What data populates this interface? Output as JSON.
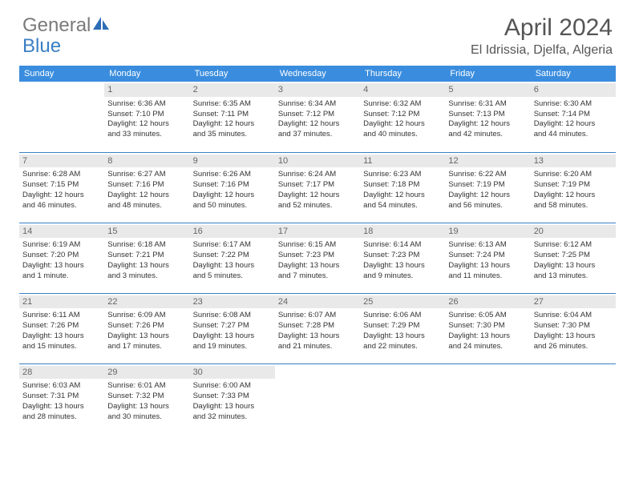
{
  "brand": {
    "part1": "General",
    "part2": "Blue"
  },
  "title": "April 2024",
  "location": "El Idrissia, Djelfa, Algeria",
  "colors": {
    "header_bg": "#3a8dde",
    "header_fg": "#ffffff",
    "row_divider": "#3a7fc4",
    "daynum_bg": "#e9e9e9",
    "daynum_fg": "#666666",
    "body_text": "#333333",
    "title_text": "#555555",
    "logo_gray": "#7a7a7a",
    "logo_blue": "#3a7fc4"
  },
  "weekdays": [
    "Sunday",
    "Monday",
    "Tuesday",
    "Wednesday",
    "Thursday",
    "Friday",
    "Saturday"
  ],
  "weeks": [
    [
      {
        "day": "",
        "sunrise": "",
        "sunset": "",
        "daylight1": "",
        "daylight2": "",
        "empty": true
      },
      {
        "day": "1",
        "sunrise": "Sunrise: 6:36 AM",
        "sunset": "Sunset: 7:10 PM",
        "daylight1": "Daylight: 12 hours",
        "daylight2": "and 33 minutes."
      },
      {
        "day": "2",
        "sunrise": "Sunrise: 6:35 AM",
        "sunset": "Sunset: 7:11 PM",
        "daylight1": "Daylight: 12 hours",
        "daylight2": "and 35 minutes."
      },
      {
        "day": "3",
        "sunrise": "Sunrise: 6:34 AM",
        "sunset": "Sunset: 7:12 PM",
        "daylight1": "Daylight: 12 hours",
        "daylight2": "and 37 minutes."
      },
      {
        "day": "4",
        "sunrise": "Sunrise: 6:32 AM",
        "sunset": "Sunset: 7:12 PM",
        "daylight1": "Daylight: 12 hours",
        "daylight2": "and 40 minutes."
      },
      {
        "day": "5",
        "sunrise": "Sunrise: 6:31 AM",
        "sunset": "Sunset: 7:13 PM",
        "daylight1": "Daylight: 12 hours",
        "daylight2": "and 42 minutes."
      },
      {
        "day": "6",
        "sunrise": "Sunrise: 6:30 AM",
        "sunset": "Sunset: 7:14 PM",
        "daylight1": "Daylight: 12 hours",
        "daylight2": "and 44 minutes."
      }
    ],
    [
      {
        "day": "7",
        "sunrise": "Sunrise: 6:28 AM",
        "sunset": "Sunset: 7:15 PM",
        "daylight1": "Daylight: 12 hours",
        "daylight2": "and 46 minutes."
      },
      {
        "day": "8",
        "sunrise": "Sunrise: 6:27 AM",
        "sunset": "Sunset: 7:16 PM",
        "daylight1": "Daylight: 12 hours",
        "daylight2": "and 48 minutes."
      },
      {
        "day": "9",
        "sunrise": "Sunrise: 6:26 AM",
        "sunset": "Sunset: 7:16 PM",
        "daylight1": "Daylight: 12 hours",
        "daylight2": "and 50 minutes."
      },
      {
        "day": "10",
        "sunrise": "Sunrise: 6:24 AM",
        "sunset": "Sunset: 7:17 PM",
        "daylight1": "Daylight: 12 hours",
        "daylight2": "and 52 minutes."
      },
      {
        "day": "11",
        "sunrise": "Sunrise: 6:23 AM",
        "sunset": "Sunset: 7:18 PM",
        "daylight1": "Daylight: 12 hours",
        "daylight2": "and 54 minutes."
      },
      {
        "day": "12",
        "sunrise": "Sunrise: 6:22 AM",
        "sunset": "Sunset: 7:19 PM",
        "daylight1": "Daylight: 12 hours",
        "daylight2": "and 56 minutes."
      },
      {
        "day": "13",
        "sunrise": "Sunrise: 6:20 AM",
        "sunset": "Sunset: 7:19 PM",
        "daylight1": "Daylight: 12 hours",
        "daylight2": "and 58 minutes."
      }
    ],
    [
      {
        "day": "14",
        "sunrise": "Sunrise: 6:19 AM",
        "sunset": "Sunset: 7:20 PM",
        "daylight1": "Daylight: 13 hours",
        "daylight2": "and 1 minute."
      },
      {
        "day": "15",
        "sunrise": "Sunrise: 6:18 AM",
        "sunset": "Sunset: 7:21 PM",
        "daylight1": "Daylight: 13 hours",
        "daylight2": "and 3 minutes."
      },
      {
        "day": "16",
        "sunrise": "Sunrise: 6:17 AM",
        "sunset": "Sunset: 7:22 PM",
        "daylight1": "Daylight: 13 hours",
        "daylight2": "and 5 minutes."
      },
      {
        "day": "17",
        "sunrise": "Sunrise: 6:15 AM",
        "sunset": "Sunset: 7:23 PM",
        "daylight1": "Daylight: 13 hours",
        "daylight2": "and 7 minutes."
      },
      {
        "day": "18",
        "sunrise": "Sunrise: 6:14 AM",
        "sunset": "Sunset: 7:23 PM",
        "daylight1": "Daylight: 13 hours",
        "daylight2": "and 9 minutes."
      },
      {
        "day": "19",
        "sunrise": "Sunrise: 6:13 AM",
        "sunset": "Sunset: 7:24 PM",
        "daylight1": "Daylight: 13 hours",
        "daylight2": "and 11 minutes."
      },
      {
        "day": "20",
        "sunrise": "Sunrise: 6:12 AM",
        "sunset": "Sunset: 7:25 PM",
        "daylight1": "Daylight: 13 hours",
        "daylight2": "and 13 minutes."
      }
    ],
    [
      {
        "day": "21",
        "sunrise": "Sunrise: 6:11 AM",
        "sunset": "Sunset: 7:26 PM",
        "daylight1": "Daylight: 13 hours",
        "daylight2": "and 15 minutes."
      },
      {
        "day": "22",
        "sunrise": "Sunrise: 6:09 AM",
        "sunset": "Sunset: 7:26 PM",
        "daylight1": "Daylight: 13 hours",
        "daylight2": "and 17 minutes."
      },
      {
        "day": "23",
        "sunrise": "Sunrise: 6:08 AM",
        "sunset": "Sunset: 7:27 PM",
        "daylight1": "Daylight: 13 hours",
        "daylight2": "and 19 minutes."
      },
      {
        "day": "24",
        "sunrise": "Sunrise: 6:07 AM",
        "sunset": "Sunset: 7:28 PM",
        "daylight1": "Daylight: 13 hours",
        "daylight2": "and 21 minutes."
      },
      {
        "day": "25",
        "sunrise": "Sunrise: 6:06 AM",
        "sunset": "Sunset: 7:29 PM",
        "daylight1": "Daylight: 13 hours",
        "daylight2": "and 22 minutes."
      },
      {
        "day": "26",
        "sunrise": "Sunrise: 6:05 AM",
        "sunset": "Sunset: 7:30 PM",
        "daylight1": "Daylight: 13 hours",
        "daylight2": "and 24 minutes."
      },
      {
        "day": "27",
        "sunrise": "Sunrise: 6:04 AM",
        "sunset": "Sunset: 7:30 PM",
        "daylight1": "Daylight: 13 hours",
        "daylight2": "and 26 minutes."
      }
    ],
    [
      {
        "day": "28",
        "sunrise": "Sunrise: 6:03 AM",
        "sunset": "Sunset: 7:31 PM",
        "daylight1": "Daylight: 13 hours",
        "daylight2": "and 28 minutes."
      },
      {
        "day": "29",
        "sunrise": "Sunrise: 6:01 AM",
        "sunset": "Sunset: 7:32 PM",
        "daylight1": "Daylight: 13 hours",
        "daylight2": "and 30 minutes."
      },
      {
        "day": "30",
        "sunrise": "Sunrise: 6:00 AM",
        "sunset": "Sunset: 7:33 PM",
        "daylight1": "Daylight: 13 hours",
        "daylight2": "and 32 minutes."
      },
      {
        "day": "",
        "sunrise": "",
        "sunset": "",
        "daylight1": "",
        "daylight2": "",
        "empty": true
      },
      {
        "day": "",
        "sunrise": "",
        "sunset": "",
        "daylight1": "",
        "daylight2": "",
        "empty": true
      },
      {
        "day": "",
        "sunrise": "",
        "sunset": "",
        "daylight1": "",
        "daylight2": "",
        "empty": true
      },
      {
        "day": "",
        "sunrise": "",
        "sunset": "",
        "daylight1": "",
        "daylight2": "",
        "empty": true
      }
    ]
  ]
}
